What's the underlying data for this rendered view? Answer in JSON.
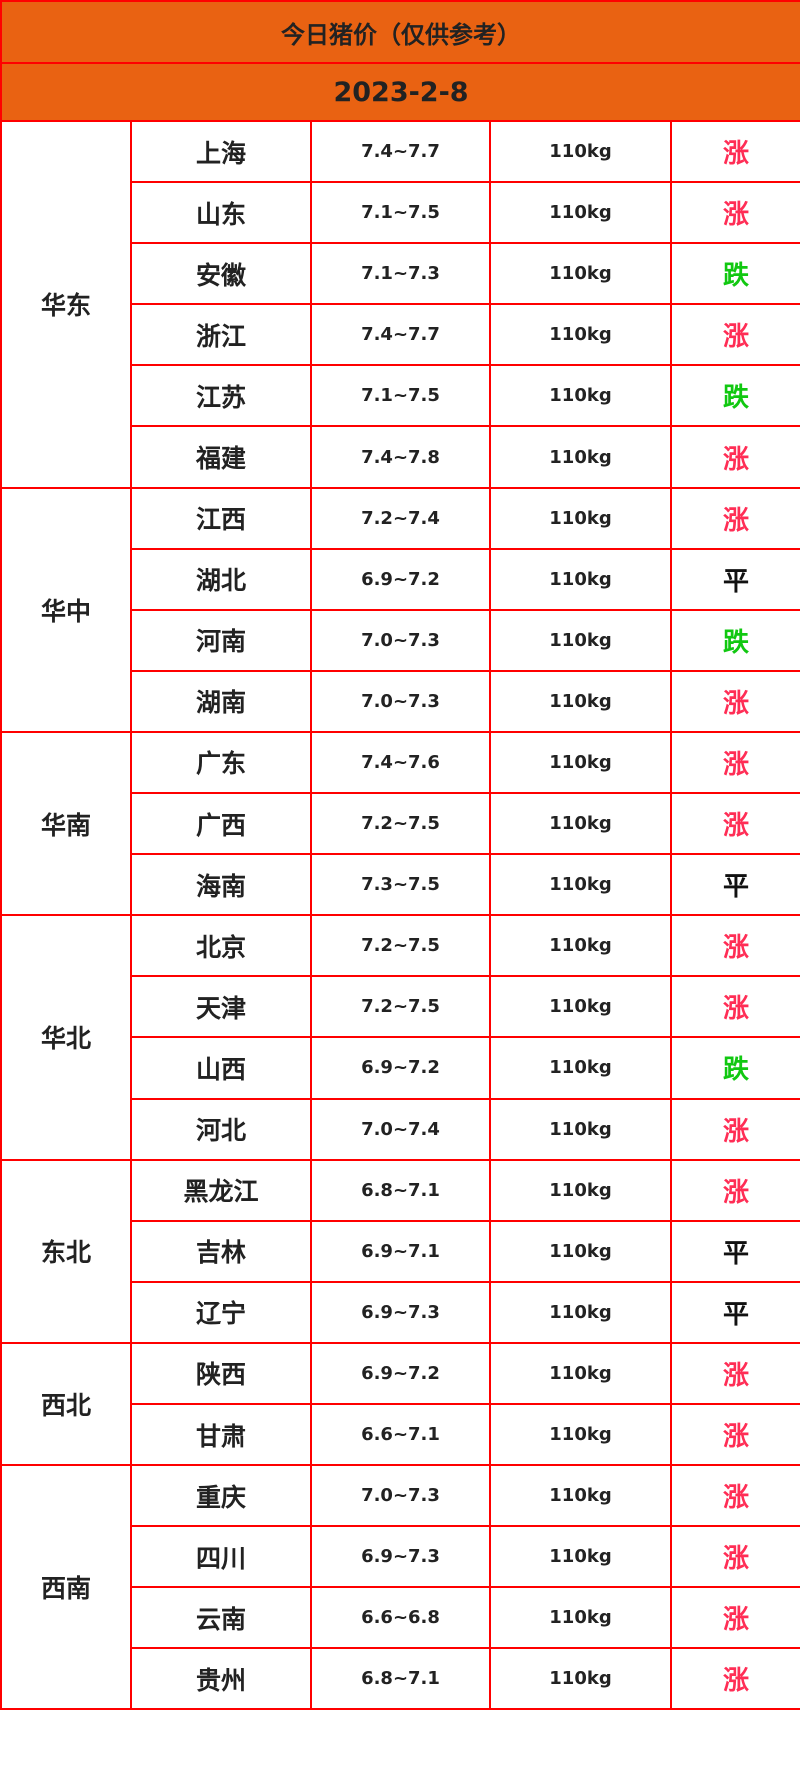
{
  "title": "今日猪价（仅供参考）",
  "date": "2023-2-8",
  "colors": {
    "header_bg": "#e96212",
    "border": "#ff0000",
    "up": "#ff2d55",
    "down": "#11c811",
    "flat": "#111111"
  },
  "regions": [
    {
      "name": "华东",
      "rows": [
        {
          "province": "上海",
          "price": "7.4~7.7",
          "weight": "110kg",
          "trend": "涨"
        },
        {
          "province": "山东",
          "price": "7.1~7.5",
          "weight": "110kg",
          "trend": "涨"
        },
        {
          "province": "安徽",
          "price": "7.1~7.3",
          "weight": "110kg",
          "trend": "跌"
        },
        {
          "province": "浙江",
          "price": "7.4~7.7",
          "weight": "110kg",
          "trend": "涨"
        },
        {
          "province": "江苏",
          "price": "7.1~7.5",
          "weight": "110kg",
          "trend": "跌"
        },
        {
          "province": "福建",
          "price": "7.4~7.8",
          "weight": "110kg",
          "trend": "涨"
        }
      ]
    },
    {
      "name": "华中",
      "rows": [
        {
          "province": "江西",
          "price": "7.2~7.4",
          "weight": "110kg",
          "trend": "涨"
        },
        {
          "province": "湖北",
          "price": "6.9~7.2",
          "weight": "110kg",
          "trend": "平"
        },
        {
          "province": "河南",
          "price": "7.0~7.3",
          "weight": "110kg",
          "trend": "跌"
        },
        {
          "province": "湖南",
          "price": "7.0~7.3",
          "weight": "110kg",
          "trend": "涨"
        }
      ]
    },
    {
      "name": "华南",
      "rows": [
        {
          "province": "广东",
          "price": "7.4~7.6",
          "weight": "110kg",
          "trend": "涨"
        },
        {
          "province": "广西",
          "price": "7.2~7.5",
          "weight": "110kg",
          "trend": "涨"
        },
        {
          "province": "海南",
          "price": "7.3~7.5",
          "weight": "110kg",
          "trend": "平"
        }
      ]
    },
    {
      "name": "华北",
      "rows": [
        {
          "province": "北京",
          "price": "7.2~7.5",
          "weight": "110kg",
          "trend": "涨"
        },
        {
          "province": "天津",
          "price": "7.2~7.5",
          "weight": "110kg",
          "trend": "涨"
        },
        {
          "province": "山西",
          "price": "6.9~7.2",
          "weight": "110kg",
          "trend": "跌"
        },
        {
          "province": "河北",
          "price": "7.0~7.4",
          "weight": "110kg",
          "trend": "涨"
        }
      ]
    },
    {
      "name": "东北",
      "rows": [
        {
          "province": "黑龙江",
          "price": "6.8~7.1",
          "weight": "110kg",
          "trend": "涨"
        },
        {
          "province": "吉林",
          "price": "6.9~7.1",
          "weight": "110kg",
          "trend": "平"
        },
        {
          "province": "辽宁",
          "price": "6.9~7.3",
          "weight": "110kg",
          "trend": "平"
        }
      ]
    },
    {
      "name": "西北",
      "rows": [
        {
          "province": "陕西",
          "price": "6.9~7.2",
          "weight": "110kg",
          "trend": "涨"
        },
        {
          "province": "甘肃",
          "price": "6.6~7.1",
          "weight": "110kg",
          "trend": "涨"
        }
      ]
    },
    {
      "name": "西南",
      "rows": [
        {
          "province": "重庆",
          "price": "7.0~7.3",
          "weight": "110kg",
          "trend": "涨"
        },
        {
          "province": "四川",
          "price": "6.9~7.3",
          "weight": "110kg",
          "trend": "涨"
        },
        {
          "province": "云南",
          "price": "6.6~6.8",
          "weight": "110kg",
          "trend": "涨"
        },
        {
          "province": "贵州",
          "price": "6.8~7.1",
          "weight": "110kg",
          "trend": "涨"
        }
      ]
    }
  ]
}
